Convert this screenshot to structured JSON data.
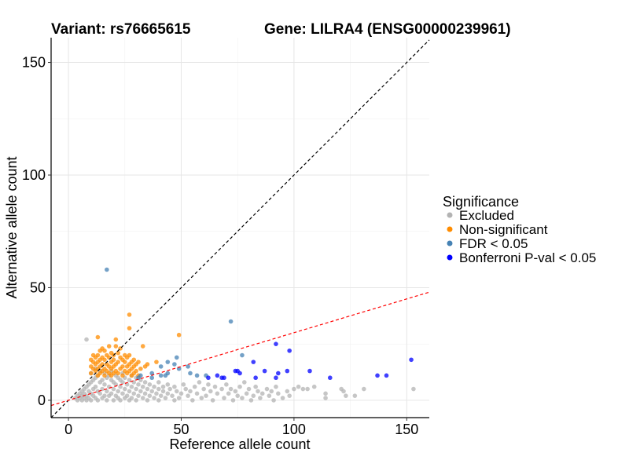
{
  "chart_data": {
    "type": "scatter",
    "title_left": "Variant: rs76665615",
    "title_right": "Gene: LILRA4 (ENSG00000239961)",
    "xlabel": "Reference allele count",
    "ylabel": "Alternative allele count",
    "xlim": [
      -7.7,
      160
    ],
    "ylim": [
      -7.7,
      161
    ],
    "xticks": [
      0,
      50,
      100,
      150
    ],
    "yticks": [
      0,
      50,
      100,
      150
    ],
    "grid": true,
    "legend": {
      "title": "Significance",
      "placement": "right",
      "entries": [
        "Excluded",
        "Non-significant",
        "FDR < 0.05",
        "Bonferroni P-val < 0.05"
      ]
    },
    "reference_lines": [
      {
        "name": "identity",
        "slope": 1,
        "intercept": 0,
        "color": "#000000",
        "style": "dashed"
      },
      {
        "name": "expected-ratio",
        "slope": 0.3,
        "intercept": 0,
        "color": "#FF0000",
        "style": "dashed"
      }
    ],
    "series": [
      {
        "name": "Excluded",
        "color": "#B3B3B3",
        "points": [
          [
            3,
            1
          ],
          [
            4,
            2
          ],
          [
            4,
            0
          ],
          [
            5,
            3
          ],
          [
            5,
            1
          ],
          [
            6,
            4
          ],
          [
            6,
            0
          ],
          [
            6,
            2
          ],
          [
            7,
            5
          ],
          [
            7,
            1
          ],
          [
            7,
            3
          ],
          [
            8,
            6
          ],
          [
            8,
            2
          ],
          [
            8,
            0
          ],
          [
            8,
            27
          ],
          [
            9,
            7
          ],
          [
            9,
            4
          ],
          [
            9,
            1
          ],
          [
            10,
            8
          ],
          [
            10,
            3
          ],
          [
            10,
            0
          ],
          [
            10,
            12
          ],
          [
            11,
            9
          ],
          [
            11,
            5
          ],
          [
            11,
            2
          ],
          [
            12,
            10
          ],
          [
            12,
            6
          ],
          [
            12,
            1
          ],
          [
            12,
            14
          ],
          [
            13,
            11
          ],
          [
            13,
            4
          ],
          [
            13,
            0
          ],
          [
            14,
            8
          ],
          [
            14,
            3
          ],
          [
            14,
            13
          ],
          [
            15,
            9
          ],
          [
            15,
            5
          ],
          [
            15,
            1
          ],
          [
            16,
            12
          ],
          [
            16,
            7
          ],
          [
            16,
            2
          ],
          [
            17,
            10
          ],
          [
            17,
            4
          ],
          [
            17,
            0
          ],
          [
            18,
            11
          ],
          [
            18,
            6
          ],
          [
            18,
            2
          ],
          [
            19,
            9
          ],
          [
            19,
            3
          ],
          [
            19,
            13
          ],
          [
            20,
            8
          ],
          [
            20,
            5
          ],
          [
            20,
            0
          ],
          [
            21,
            11
          ],
          [
            21,
            7
          ],
          [
            21,
            2
          ],
          [
            22,
            10
          ],
          [
            22,
            4
          ],
          [
            22,
            1
          ],
          [
            23,
            9
          ],
          [
            23,
            6
          ],
          [
            23,
            0
          ],
          [
            24,
            12
          ],
          [
            24,
            8
          ],
          [
            24,
            3
          ],
          [
            25,
            10
          ],
          [
            25,
            5
          ],
          [
            25,
            1
          ],
          [
            26,
            7
          ],
          [
            26,
            2
          ],
          [
            27,
            9
          ],
          [
            27,
            4
          ],
          [
            27,
            0
          ],
          [
            28,
            11
          ],
          [
            28,
            6
          ],
          [
            28,
            1
          ],
          [
            29,
            8
          ],
          [
            29,
            3
          ],
          [
            30,
            10
          ],
          [
            30,
            5
          ],
          [
            30,
            0
          ],
          [
            31,
            7
          ],
          [
            31,
            2
          ],
          [
            32,
            9
          ],
          [
            32,
            4
          ],
          [
            33,
            6
          ],
          [
            33,
            1
          ],
          [
            34,
            8
          ],
          [
            34,
            3
          ],
          [
            35,
            5
          ],
          [
            35,
            0
          ],
          [
            36,
            7
          ],
          [
            36,
            2
          ],
          [
            37,
            4
          ],
          [
            38,
            6
          ],
          [
            38,
            1
          ],
          [
            39,
            3
          ],
          [
            40,
            8
          ],
          [
            40,
            5
          ],
          [
            40,
            0
          ],
          [
            41,
            2
          ],
          [
            42,
            6
          ],
          [
            42,
            4
          ],
          [
            43,
            1
          ],
          [
            44,
            7
          ],
          [
            44,
            3
          ],
          [
            45,
            5
          ],
          [
            46,
            2
          ],
          [
            47,
            6
          ],
          [
            47,
            0
          ],
          [
            48,
            4
          ],
          [
            49,
            1
          ],
          [
            50,
            3
          ],
          [
            51,
            7
          ],
          [
            52,
            5
          ],
          [
            53,
            2
          ],
          [
            54,
            4
          ],
          [
            55,
            0
          ],
          [
            56,
            6
          ],
          [
            57,
            3
          ],
          [
            58,
            8
          ],
          [
            59,
            1
          ],
          [
            60,
            5
          ],
          [
            61,
            2
          ],
          [
            62,
            7
          ],
          [
            63,
            4
          ],
          [
            64,
            0
          ],
          [
            65,
            6
          ],
          [
            66,
            3
          ],
          [
            68,
            5
          ],
          [
            69,
            1
          ],
          [
            70,
            7
          ],
          [
            71,
            3
          ],
          [
            72,
            5
          ],
          [
            73,
            0
          ],
          [
            74,
            4
          ],
          [
            75,
            2
          ],
          [
            76,
            6
          ],
          [
            77,
            1
          ],
          [
            78,
            8
          ],
          [
            79,
            3
          ],
          [
            80,
            5
          ],
          [
            81,
            0
          ],
          [
            82,
            2
          ],
          [
            83,
            6
          ],
          [
            84,
            4
          ],
          [
            85,
            1
          ],
          [
            86,
            3
          ],
          [
            88,
            5
          ],
          [
            89,
            2
          ],
          [
            90,
            4
          ],
          [
            91,
            0
          ],
          [
            92,
            6
          ],
          [
            93,
            3
          ],
          [
            95,
            1
          ],
          [
            97,
            4
          ],
          [
            98,
            2
          ],
          [
            100,
            5
          ],
          [
            102,
            6
          ],
          [
            104,
            5
          ],
          [
            106,
            5
          ],
          [
            109,
            6
          ],
          [
            114,
            3
          ],
          [
            114,
            1
          ],
          [
            121,
            5
          ],
          [
            122,
            4
          ],
          [
            123,
            2
          ],
          [
            127,
            2
          ],
          [
            131,
            5
          ],
          [
            153,
            5
          ]
        ]
      },
      {
        "name": "Non-significant",
        "color": "#FF8C00",
        "points": [
          [
            27,
            38
          ],
          [
            27,
            32
          ],
          [
            49,
            29
          ],
          [
            13,
            28
          ],
          [
            21,
            27
          ],
          [
            33,
            24
          ],
          [
            18,
            24
          ],
          [
            21,
            24
          ],
          [
            15,
            23
          ],
          [
            23,
            23
          ],
          [
            14,
            22
          ],
          [
            16,
            22
          ],
          [
            19,
            21
          ],
          [
            22,
            21
          ],
          [
            11,
            20
          ],
          [
            13,
            20
          ],
          [
            17,
            20
          ],
          [
            20,
            20
          ],
          [
            25,
            20
          ],
          [
            27,
            20
          ],
          [
            12,
            19
          ],
          [
            15,
            19
          ],
          [
            18,
            19
          ],
          [
            23,
            19
          ],
          [
            26,
            19
          ],
          [
            29,
            18
          ],
          [
            10,
            18
          ],
          [
            14,
            18
          ],
          [
            16,
            18
          ],
          [
            20,
            18
          ],
          [
            24,
            18
          ],
          [
            28,
            17
          ],
          [
            11,
            17
          ],
          [
            13,
            17
          ],
          [
            19,
            17
          ],
          [
            22,
            17
          ],
          [
            25,
            17
          ],
          [
            31,
            17
          ],
          [
            35,
            16
          ],
          [
            12,
            16
          ],
          [
            15,
            16
          ],
          [
            17,
            16
          ],
          [
            21,
            16
          ],
          [
            27,
            16
          ],
          [
            30,
            16
          ],
          [
            10,
            15
          ],
          [
            14,
            15
          ],
          [
            18,
            15
          ],
          [
            20,
            15
          ],
          [
            24,
            15
          ],
          [
            26,
            15
          ],
          [
            29,
            15
          ],
          [
            11,
            14
          ],
          [
            13,
            14
          ],
          [
            16,
            14
          ],
          [
            19,
            14
          ],
          [
            23,
            14
          ],
          [
            28,
            14
          ],
          [
            32,
            14
          ],
          [
            12,
            13
          ],
          [
            15,
            13
          ],
          [
            17,
            13
          ],
          [
            21,
            13
          ],
          [
            25,
            13
          ],
          [
            27,
            13
          ],
          [
            30,
            13
          ],
          [
            10,
            12
          ],
          [
            14,
            12
          ],
          [
            18,
            12
          ],
          [
            20,
            12
          ],
          [
            22,
            12
          ],
          [
            26,
            12
          ],
          [
            29,
            12
          ],
          [
            13,
            11
          ],
          [
            16,
            11
          ],
          [
            19,
            11
          ],
          [
            24,
            11
          ],
          [
            28,
            11
          ],
          [
            31,
            11
          ],
          [
            39,
            17
          ],
          [
            34,
            15
          ]
        ]
      },
      {
        "name": "FDR < 0.05",
        "color": "#4682B4",
        "points": [
          [
            17,
            58
          ],
          [
            72,
            35
          ],
          [
            77,
            20
          ],
          [
            48,
            19
          ],
          [
            44,
            17
          ],
          [
            47,
            16
          ],
          [
            41,
            15
          ],
          [
            49,
            14
          ],
          [
            53,
            15
          ],
          [
            54,
            12
          ],
          [
            57,
            11
          ],
          [
            61,
            11
          ],
          [
            44,
            12
          ],
          [
            41,
            11
          ],
          [
            43,
            11
          ],
          [
            37,
            12
          ],
          [
            37,
            10
          ],
          [
            31,
            10
          ],
          [
            32,
            11
          ]
        ]
      },
      {
        "name": "Bonferroni P-val < 0.05",
        "color": "#0000FF",
        "points": [
          [
            92,
            25
          ],
          [
            98,
            22
          ],
          [
            82,
            17
          ],
          [
            74,
            13
          ],
          [
            75,
            13
          ],
          [
            76,
            12
          ],
          [
            87,
            13
          ],
          [
            93,
            12
          ],
          [
            97,
            13
          ],
          [
            107,
            13
          ],
          [
            116,
            10
          ],
          [
            83,
            10
          ],
          [
            92,
            10
          ],
          [
            66,
            11
          ],
          [
            62,
            10
          ],
          [
            68,
            10
          ],
          [
            69,
            10
          ],
          [
            137,
            11
          ],
          [
            141,
            11
          ],
          [
            152,
            18
          ]
        ]
      }
    ]
  }
}
